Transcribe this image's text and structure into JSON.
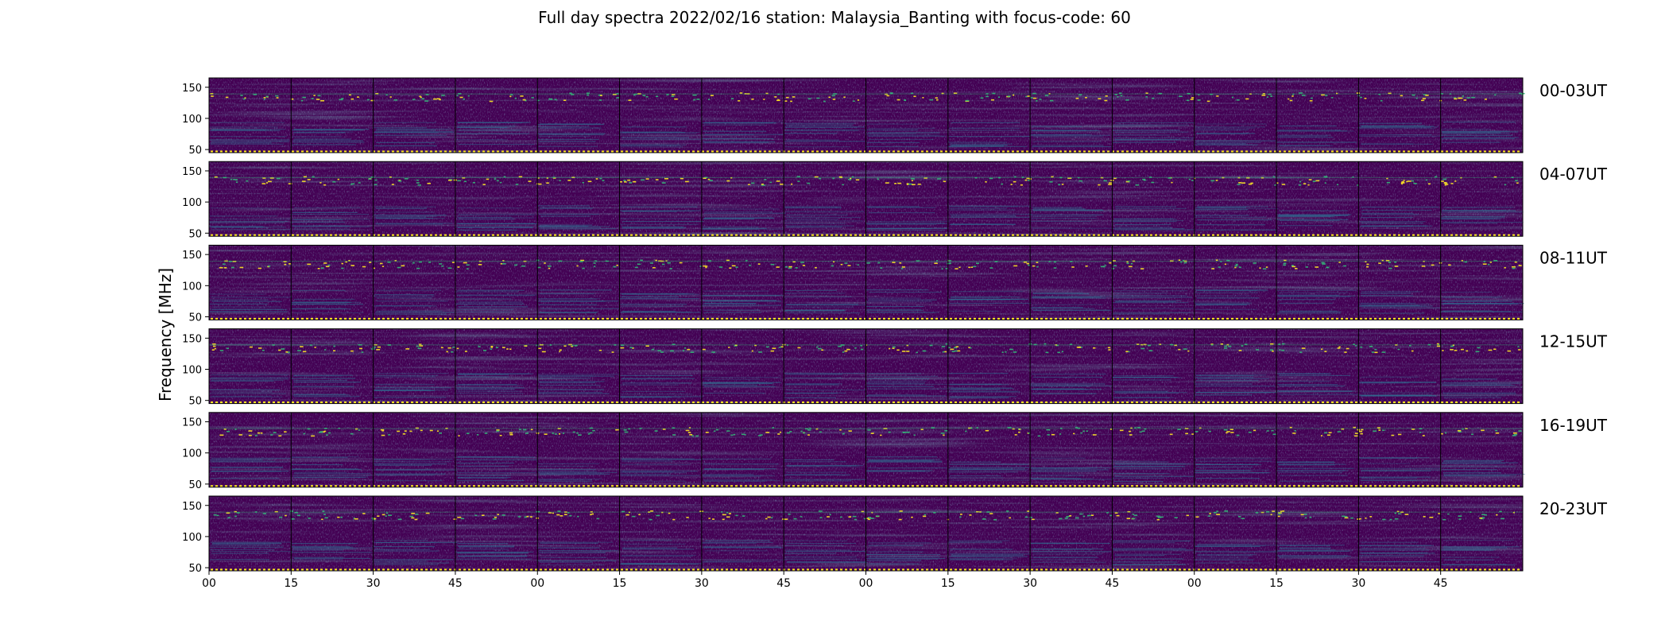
{
  "chart_data": {
    "type": "heatmap",
    "title": "Full day spectra 2022/02/16 station: Malaysia_Banting with focus-code: 60",
    "ylabel": "Frequency [MHz]",
    "xlabel": "",
    "colormap": "viridis",
    "ylim": [
      45,
      165
    ],
    "yticks": [
      50,
      100,
      150
    ],
    "xtick_labels": [
      "00",
      "15",
      "30",
      "45",
      "00",
      "15",
      "30",
      "45",
      "00",
      "15",
      "30",
      "45",
      "00",
      "15",
      "30",
      "45"
    ],
    "panels_per_row": 16,
    "panel_minutes": 15,
    "rows": [
      {
        "label": "00-03UT"
      },
      {
        "label": "04-07UT"
      },
      {
        "label": "08-11UT"
      },
      {
        "label": "12-15UT"
      },
      {
        "label": "16-19UT"
      },
      {
        "label": "20-23UT"
      }
    ]
  },
  "colors": {
    "background": "#440154",
    "low": "#3b1c6f",
    "mid": "#31688e",
    "high": "#35b779",
    "peak": "#fde725",
    "panel_border": "#000000"
  }
}
